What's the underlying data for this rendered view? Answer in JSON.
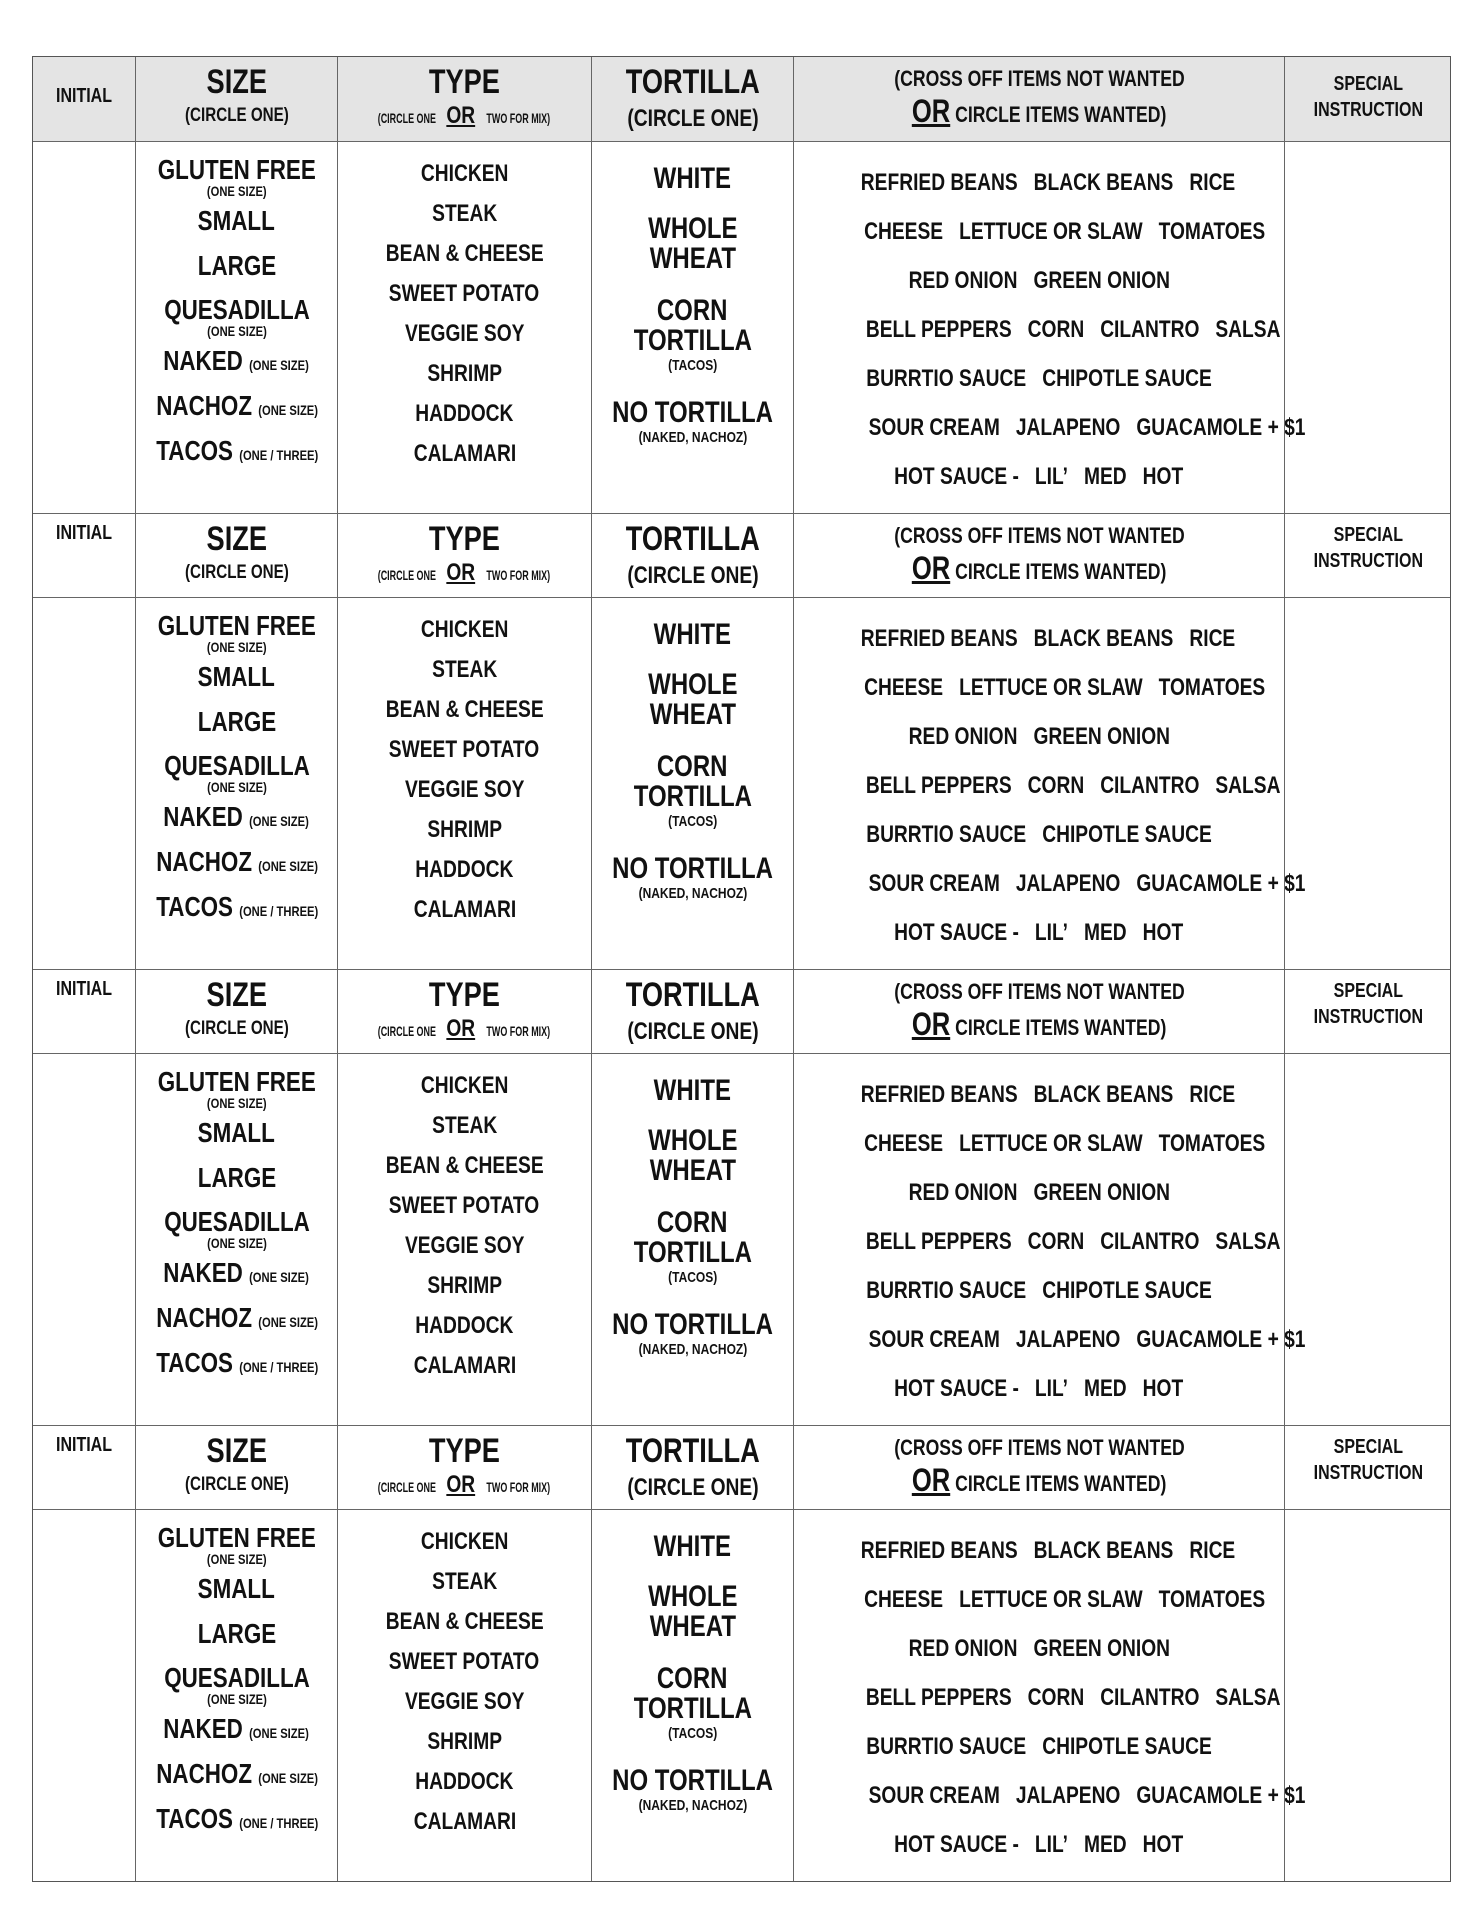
{
  "header": {
    "initial": "INITIAL",
    "size": "SIZE",
    "size_sub": "(CIRCLE ONE)",
    "type": "TYPE",
    "type_sub_a": "(CIRCLE ONE",
    "type_or": "OR",
    "type_sub_b": "TWO FOR MIX)",
    "tortilla": "TORTILLA",
    "tortilla_sub": "(CIRCLE ONE)",
    "toppings_line1": "(CROSS OFF ITEMS NOT WANTED",
    "toppings_or": "OR",
    "toppings_line2": "CIRCLE ITEMS WANTED)",
    "special_1": "SPECIAL",
    "special_2": "INSTRUCTION"
  },
  "sizes": [
    {
      "label": "GLUTEN FREE",
      "note_below": "(ONE SIZE)"
    },
    {
      "label": "SMALL"
    },
    {
      "label": "LARGE"
    },
    {
      "label": "QUESADILLA",
      "note_below": "(ONE SIZE)"
    },
    {
      "label": "NAKED",
      "note": "(ONE SIZE)"
    },
    {
      "label": "NACHOZ",
      "note": "(ONE SIZE)"
    },
    {
      "label": "TACOS",
      "note": "(ONE / THREE)"
    }
  ],
  "types": [
    "CHICKEN",
    "STEAK",
    "BEAN & CHEESE",
    "SWEET POTATO",
    "VEGGIE SOY",
    "SHRIMP",
    "HADDOCK",
    "CALAMARI"
  ],
  "tortillas": [
    {
      "lines": [
        "WHITE"
      ]
    },
    {
      "lines": [
        "WHOLE",
        "WHEAT"
      ]
    },
    {
      "lines": [
        "CORN",
        "TORTILLA"
      ],
      "note": "(TACOS)"
    },
    {
      "lines": [
        "NO TORTILLA"
      ],
      "note": "(NAKED, NACHOZ)"
    }
  ],
  "toppings": [
    [
      "REFRIED BEANS",
      "BLACK BEANS",
      "RICE"
    ],
    [
      "CHEESE",
      "LETTUCE OR SLAW",
      "TOMATOES"
    ],
    [
      "RED ONION",
      "GREEN ONION"
    ],
    [
      "BELL PEPPERS",
      "CORN",
      "CILANTRO",
      "SALSA"
    ],
    [
      "BURRTIO SAUCE",
      "CHIPOTLE SAUCE"
    ],
    [
      "SOUR CREAM",
      "JALAPENO",
      "GUACAMOLE + $1"
    ],
    [
      "HOT SAUCE -",
      "LIL’",
      "MED",
      "HOT"
    ]
  ],
  "colors": {
    "header_bg": "#e4e4e4",
    "border": "#666666"
  },
  "order_blocks": 4
}
